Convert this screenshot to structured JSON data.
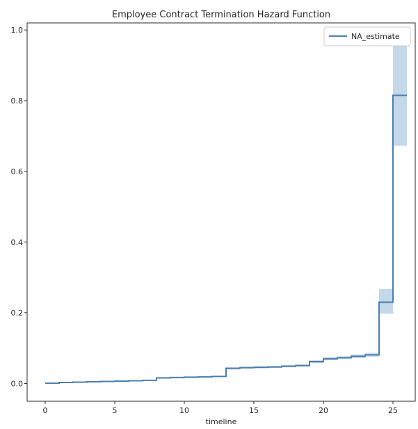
{
  "chart_data": {
    "type": "line",
    "title": "Employee Contract Termination Hazard Function",
    "xlabel": "timeline",
    "ylabel": "",
    "xlim": [
      -1.3,
      26.6
    ],
    "ylim": [
      -0.05,
      1.02
    ],
    "xticks": [
      0,
      5,
      10,
      15,
      20,
      25
    ],
    "yticks": [
      0.0,
      0.2,
      0.4,
      0.6,
      0.8,
      1.0
    ],
    "ytick_labels": [
      "0.0",
      "0.2",
      "0.4",
      "0.6",
      "0.8",
      "1.0"
    ],
    "legend": {
      "placement": "upper-right",
      "entries": [
        "NA_estimate"
      ]
    },
    "grid": false,
    "colors": {
      "line": "#4c7fb0",
      "band": "#a9c8e0"
    },
    "series": [
      {
        "name": "NA_estimate",
        "step": "post",
        "x": [
          0,
          1,
          2,
          3,
          4,
          5,
          6,
          7,
          8,
          9,
          10,
          11,
          12,
          13,
          14,
          15,
          16,
          17,
          18,
          19,
          20,
          21,
          22,
          23,
          24,
          25,
          26
        ],
        "values": [
          0.001,
          0.003,
          0.004,
          0.005,
          0.006,
          0.007,
          0.008,
          0.009,
          0.016,
          0.017,
          0.018,
          0.019,
          0.02,
          0.043,
          0.045,
          0.046,
          0.047,
          0.049,
          0.051,
          0.062,
          0.07,
          0.073,
          0.077,
          0.081,
          0.23,
          0.815,
          0.815
        ],
        "ci_lower": [
          0.0,
          0.002,
          0.003,
          0.004,
          0.005,
          0.006,
          0.007,
          0.008,
          0.014,
          0.015,
          0.016,
          0.017,
          0.018,
          0.04,
          0.042,
          0.043,
          0.044,
          0.046,
          0.048,
          0.058,
          0.066,
          0.069,
          0.072,
          0.076,
          0.198,
          0.673,
          0.673
        ],
        "ci_upper": [
          0.002,
          0.004,
          0.005,
          0.006,
          0.007,
          0.008,
          0.009,
          0.01,
          0.018,
          0.019,
          0.02,
          0.021,
          0.022,
          0.046,
          0.048,
          0.049,
          0.05,
          0.052,
          0.054,
          0.066,
          0.074,
          0.077,
          0.082,
          0.087,
          0.268,
          0.975,
          0.975
        ]
      }
    ]
  }
}
